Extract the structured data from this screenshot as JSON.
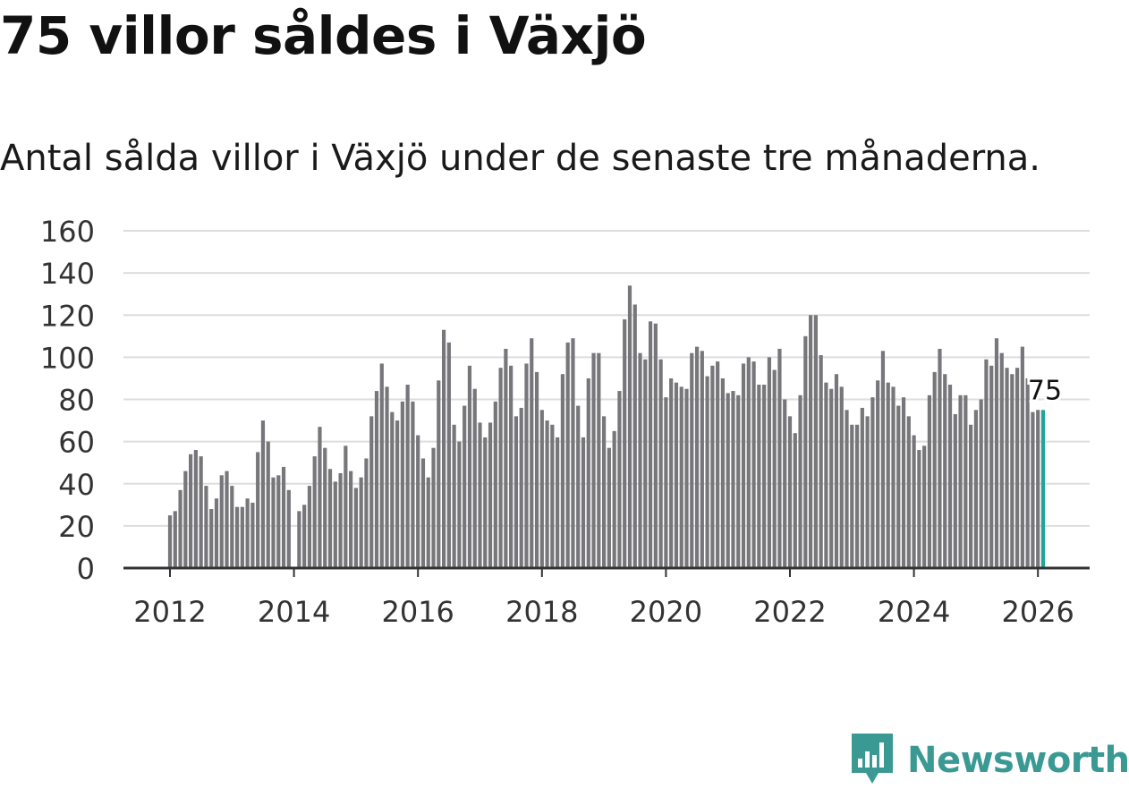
{
  "title": "75 villor såldes i Växjö",
  "subtitle": "Antal sålda villor i Växjö under de senaste tre månaderna.",
  "brand": {
    "name": "Newsworthy",
    "logo_icon": "newsworthy-logo-icon"
  },
  "colors": {
    "bar": "#77767b",
    "highlight": "#1fa598",
    "grid": "#dddddd",
    "axis": "#333333",
    "brand": "#3a9a93"
  },
  "chart_data": {
    "type": "bar",
    "title": "75 villor såldes i Växjö",
    "subtitle": "Antal sålda villor i Växjö under de senaste tre månaderna.",
    "xlabel": "",
    "ylabel": "",
    "ylim": [
      0,
      160
    ],
    "yticks": [
      0,
      20,
      40,
      60,
      80,
      100,
      120,
      140,
      160
    ],
    "grid": true,
    "xtick_labels": [
      "2012",
      "2014",
      "2016",
      "2018",
      "2020",
      "2022",
      "2024",
      "2026"
    ],
    "x_range": [
      "2011-07",
      "2026-09"
    ],
    "start_month": "2012-01",
    "highlight_label": "75",
    "series": [
      {
        "name": "Antal sålda villor",
        "values": [
          25,
          27,
          37,
          46,
          54,
          56,
          53,
          39,
          28,
          33,
          44,
          46,
          39,
          29,
          29,
          33,
          31,
          55,
          70,
          60,
          43,
          44,
          48,
          37,
          null,
          27,
          30,
          39,
          53,
          67,
          57,
          47,
          41,
          45,
          58,
          46,
          38,
          43,
          52,
          72,
          84,
          97,
          86,
          74,
          70,
          79,
          87,
          79,
          63,
          52,
          43,
          57,
          89,
          113,
          107,
          68,
          60,
          77,
          96,
          85,
          69,
          62,
          69,
          79,
          95,
          104,
          96,
          72,
          76,
          97,
          109,
          93,
          75,
          70,
          68,
          62,
          92,
          107,
          109,
          77,
          62,
          90,
          102,
          102,
          72,
          57,
          65,
          84,
          118,
          134,
          125,
          102,
          99,
          117,
          116,
          99,
          81,
          90,
          88,
          86,
          85,
          102,
          105,
          103,
          91,
          96,
          98,
          90,
          83,
          84,
          82,
          97,
          100,
          98,
          87,
          87,
          100,
          94,
          104,
          80,
          72,
          64,
          82,
          110,
          120,
          120,
          101,
          88,
          85,
          92,
          86,
          75,
          68,
          68,
          76,
          72,
          81,
          89,
          103,
          88,
          86,
          77,
          81,
          72,
          63,
          56,
          58,
          82,
          93,
          104,
          92,
          87,
          73,
          82,
          82,
          68,
          75,
          80,
          99,
          96,
          109,
          102,
          95,
          92,
          95,
          105,
          90,
          74,
          75,
          75
        ]
      }
    ]
  }
}
